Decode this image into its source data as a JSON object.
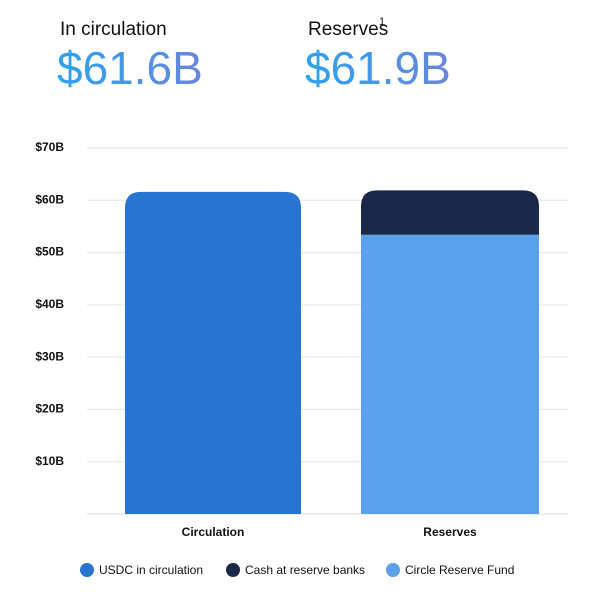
{
  "header": {
    "stats": [
      {
        "label": "In circulation",
        "value": "$61.6B"
      },
      {
        "label": "Reserves",
        "footnote": "1",
        "value": "$61.9B"
      }
    ]
  },
  "chart_data": {
    "type": "stacked-bar",
    "categories": [
      "Circulation",
      "Reserves"
    ],
    "series": [
      {
        "name": "USDC in circulation",
        "color": "#2775d0",
        "values": [
          61.6,
          null
        ]
      },
      {
        "name": "Circle Reserve Fund",
        "color": "#5aa0ea",
        "values": [
          null,
          53.4
        ]
      },
      {
        "name": "Cash at reserve banks",
        "color": "#1b2849",
        "values": [
          null,
          8.5
        ]
      }
    ],
    "legend_order": [
      0,
      2,
      1
    ],
    "ylim": [
      0,
      70
    ],
    "yticks": [
      {
        "value": 10,
        "label": "$10B"
      },
      {
        "value": 20,
        "label": "$20B"
      },
      {
        "value": 30,
        "label": "$30B"
      },
      {
        "value": 40,
        "label": "$40B"
      },
      {
        "value": 50,
        "label": "$50B"
      },
      {
        "value": 60,
        "label": "$60B"
      },
      {
        "value": 70,
        "label": "$70B"
      }
    ],
    "grid": true
  }
}
